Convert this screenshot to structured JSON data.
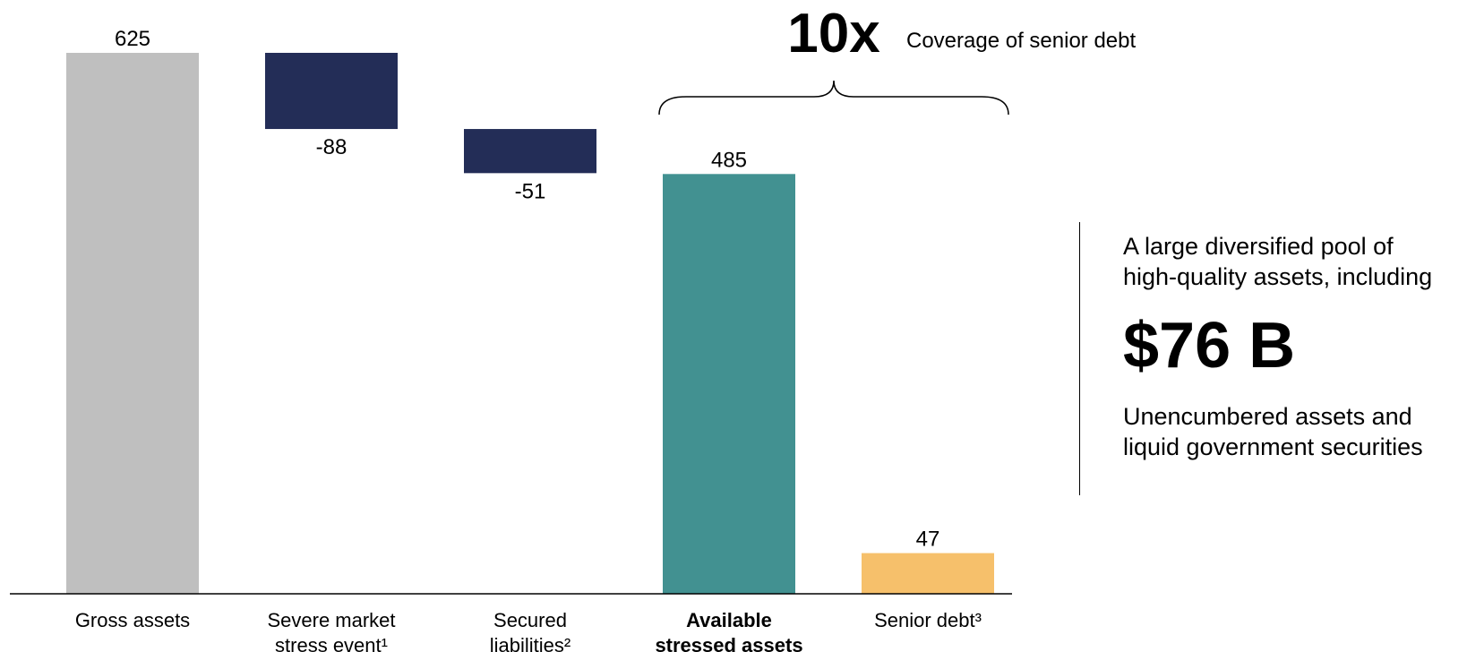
{
  "chart_data": {
    "type": "bar",
    "subtype": "waterfall",
    "categories": [
      [
        "Gross assets"
      ],
      [
        "Severe market",
        "stress event¹"
      ],
      [
        "Secured",
        "liabilities²"
      ],
      [
        "Available",
        "stressed assets"
      ],
      [
        "Senior debt³"
      ]
    ],
    "values": [
      625,
      -88,
      -51,
      485,
      47
    ],
    "bar_kinds": [
      "total",
      "delta",
      "delta",
      "total",
      "total"
    ],
    "value_labels": [
      "625",
      "-88",
      "-51",
      "485",
      "47"
    ],
    "bold_categories": [
      3
    ],
    "colors": {
      "total_gray": "#bfbfbf",
      "delta_navy": "#232d57",
      "available_teal": "#429191",
      "senior_orange": "#f6c06b"
    },
    "bar_colors": [
      "#bfbfbf",
      "#232d57",
      "#232d57",
      "#429191",
      "#f6c06b"
    ],
    "ylim": [
      0,
      625
    ],
    "grid": false,
    "annotation": {
      "multiple": "10x",
      "caption": "Coverage of senior debt",
      "brace_from_category": 3,
      "brace_to_category": 4
    }
  },
  "side_panel": {
    "intro": [
      "A large diversified pool of",
      "high-quality assets, including"
    ],
    "amount": "$76 B",
    "description": [
      "Unencumbered assets and",
      "liquid government securities"
    ]
  }
}
